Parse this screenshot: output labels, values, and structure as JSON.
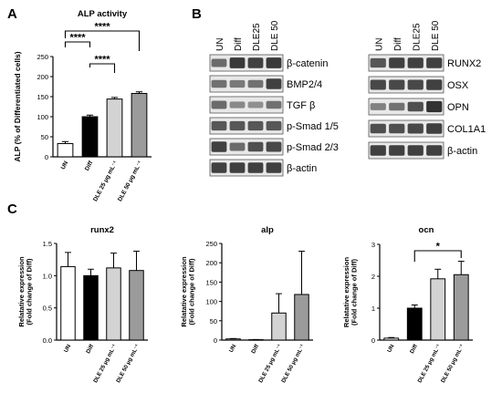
{
  "panels": {
    "A": "A",
    "B": "B",
    "C": "C"
  },
  "colors": {
    "UN": "#ffffff",
    "Diff": "#000000",
    "DLE25": "#d3d3d3",
    "DLE50": "#9b9b9b",
    "blot_band": "#2b2b2b",
    "blot_bg": "#e8e8e8"
  },
  "chart_data": [
    {
      "type": "bar",
      "title": "ALP activity",
      "ylabel": "ALP (% of Differentiated cells)",
      "categories": [
        "UN",
        "Diff",
        "DLE 25 μg mL⁻¹",
        "DLE 50 μg mL⁻¹"
      ],
      "values": [
        33,
        100,
        144,
        158
      ],
      "errors": [
        5,
        4,
        4,
        4
      ],
      "ylim": [
        0,
        250
      ],
      "yticks": [
        "0",
        "50",
        "100",
        "150",
        "200",
        "250"
      ],
      "significance": [
        {
          "from": 0,
          "to": 1,
          "label": "****"
        },
        {
          "from": 0,
          "to": 3,
          "label": "****"
        },
        {
          "from": 1,
          "to": 2,
          "label": "****"
        }
      ]
    },
    {
      "type": "bar",
      "title": "runx2",
      "ylabel": "Relatative expression (Fold change of Diff)",
      "categories": [
        "UN",
        "Diff",
        "DLE 25 μg mL⁻¹",
        "DLE 50 μg mL⁻¹"
      ],
      "values": [
        1.14,
        1.0,
        1.12,
        1.08
      ],
      "errors": [
        0.22,
        0.1,
        0.23,
        0.3
      ],
      "ylim": [
        0,
        1.5
      ],
      "yticks": [
        "0.0",
        "0.5",
        "1.0",
        "1.5"
      ],
      "significance": []
    },
    {
      "type": "bar",
      "title": "alp",
      "ylabel": "Relatative expression (Fold change of Diff)",
      "categories": [
        "UN",
        "Diff",
        "DLE 25 μg mL⁻¹",
        "DLE 50 μg mL⁻¹"
      ],
      "values": [
        3,
        1,
        70,
        118
      ],
      "errors": [
        1,
        0.5,
        50,
        112
      ],
      "ylim": [
        0,
        250
      ],
      "yticks": [
        "0",
        "50",
        "100",
        "150",
        "200",
        "250"
      ],
      "significance": []
    },
    {
      "type": "bar",
      "title": "ocn",
      "ylabel": "Relatative expression (Fold change of Diff)",
      "categories": [
        "UN",
        "Diff",
        "DLE 25 μg mL⁻¹",
        "DLE 50 μg mL⁻¹"
      ],
      "values": [
        0.06,
        1.0,
        1.92,
        2.05
      ],
      "errors": [
        0.02,
        0.1,
        0.3,
        0.42
      ],
      "ylim": [
        0,
        3
      ],
      "yticks": [
        "0",
        "1",
        "2",
        "3"
      ],
      "significance": [
        {
          "from": 1,
          "to": 3,
          "label": "*"
        }
      ]
    }
  ],
  "blots": {
    "left": {
      "lanes": [
        "UN",
        "Diff",
        "DLE25",
        "DLE 50"
      ],
      "rows": [
        {
          "label": "β-catenin",
          "bands": [
            0.55,
            0.9,
            0.85,
            0.9
          ]
        },
        {
          "label": "BMP2/4",
          "bands": [
            0.5,
            0.45,
            0.5,
            0.85
          ]
        },
        {
          "label": "TGF β",
          "bands": [
            0.55,
            0.35,
            0.3,
            0.5
          ]
        },
        {
          "label": "p-Smad 1/5",
          "bands": [
            0.7,
            0.7,
            0.7,
            0.7
          ]
        },
        {
          "label": "p-Smad 2/3",
          "bands": [
            0.85,
            0.55,
            0.75,
            0.8
          ]
        },
        {
          "label": "β-actin",
          "bands": [
            0.85,
            0.85,
            0.85,
            0.85
          ]
        }
      ]
    },
    "right": {
      "lanes": [
        "UN",
        "Diff",
        "DLE25",
        "DLE 50"
      ],
      "rows": [
        {
          "label": "RUNX2",
          "bands": [
            0.7,
            0.85,
            0.85,
            0.85
          ]
        },
        {
          "label": "OSX",
          "bands": [
            0.8,
            0.8,
            0.8,
            0.85
          ]
        },
        {
          "label": "OPN",
          "bands": [
            0.4,
            0.5,
            0.75,
            0.95
          ]
        },
        {
          "label": "COL1A1",
          "bands": [
            0.75,
            0.75,
            0.8,
            0.85
          ]
        },
        {
          "label": "β-actin",
          "bands": [
            0.85,
            0.85,
            0.85,
            0.85
          ]
        }
      ]
    }
  }
}
